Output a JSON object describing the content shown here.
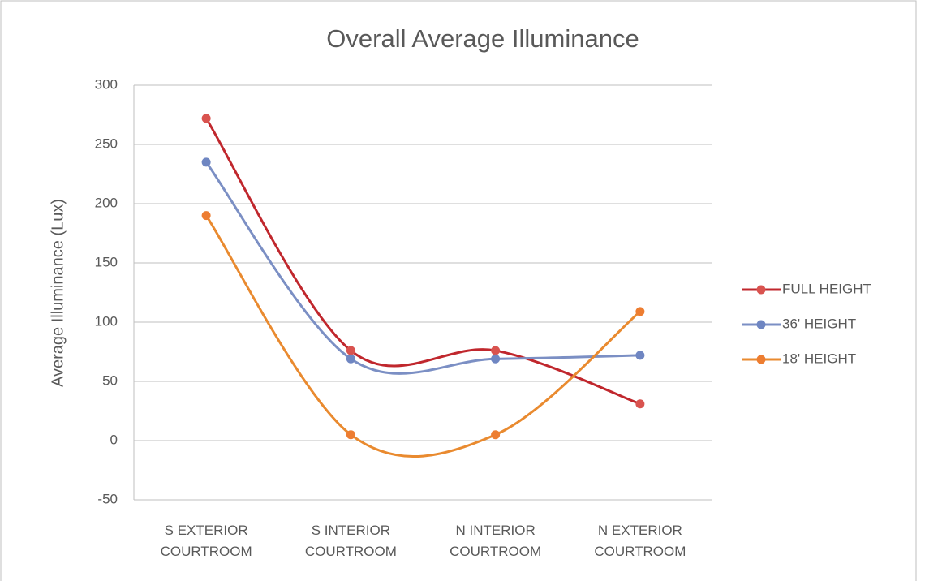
{
  "chart_data": {
    "type": "line",
    "title": "Overall Average Illuminance",
    "y_label": "Average Illuminance (Lux)",
    "categories": [
      "S EXTERIOR COURTROOM",
      "S INTERIOR COURTROOM",
      "N INTERIOR COURTROOM",
      "N EXTERIOR COURTROOM"
    ],
    "series": [
      {
        "name": "FULL HEIGHT",
        "color": "#c0272d",
        "marker_color": "#d9534f",
        "values": [
          272,
          76,
          76,
          31
        ]
      },
      {
        "name": "36' HEIGHT",
        "color": "#7b8fc4",
        "marker_color": "#6f86c2",
        "values": [
          235,
          69,
          69,
          72
        ]
      },
      {
        "name": "18' HEIGHT",
        "color": "#e98a2f",
        "marker_color": "#ed7d31",
        "values": [
          190,
          5,
          5,
          109
        ]
      }
    ],
    "ylim": [
      -50,
      300
    ],
    "yticks": [
      -50,
      0,
      50,
      100,
      150,
      200,
      250,
      300
    ],
    "grid": true,
    "smooth": true,
    "legend": "right"
  }
}
